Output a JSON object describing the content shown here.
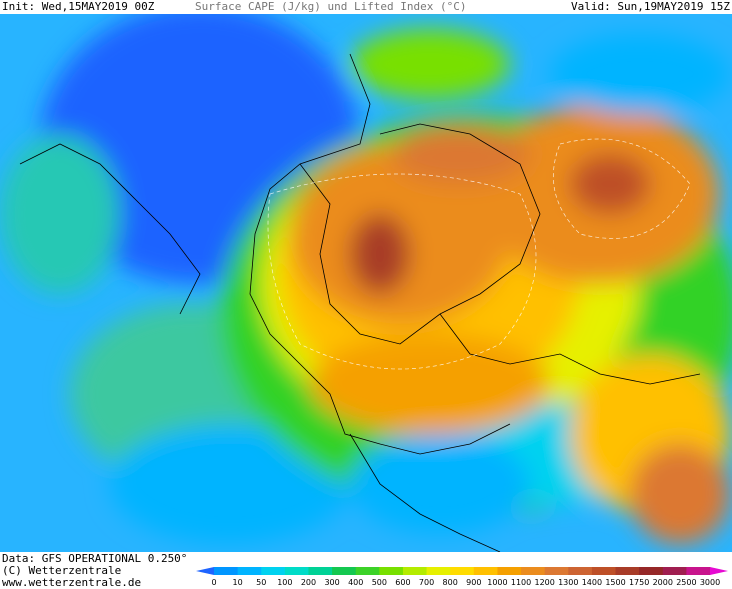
{
  "header": {
    "init": "Init: Wed,15MAY2019 00Z",
    "title": "Surface CAPE (J/kg) und Lifted Index (°C)",
    "valid": "Valid: Sun,19MAY2019 15Z"
  },
  "footer": {
    "data": "Data: GFS OPERATIONAL 0.250°",
    "copyright": "(C) Wetterzentrale",
    "url": "www.wetterzentrale.de"
  },
  "colorbar": {
    "ticks": [
      0,
      10,
      50,
      100,
      200,
      300,
      400,
      500,
      600,
      700,
      800,
      900,
      1000,
      1100,
      1200,
      1300,
      1400,
      1500,
      1750,
      2000,
      2500,
      3000
    ],
    "colors": [
      "#1e64ff",
      "#0096ff",
      "#00b4ff",
      "#00d2f0",
      "#00dcc8",
      "#00d296",
      "#14c850",
      "#3cd228",
      "#78e000",
      "#b4ec00",
      "#e6f000",
      "#ffdc00",
      "#ffc000",
      "#f5a000",
      "#eb8c1e",
      "#dc7832",
      "#cd6432",
      "#be5028",
      "#a83c28",
      "#962828",
      "#a01e50",
      "#c8148c",
      "#e60ad2"
    ]
  }
}
